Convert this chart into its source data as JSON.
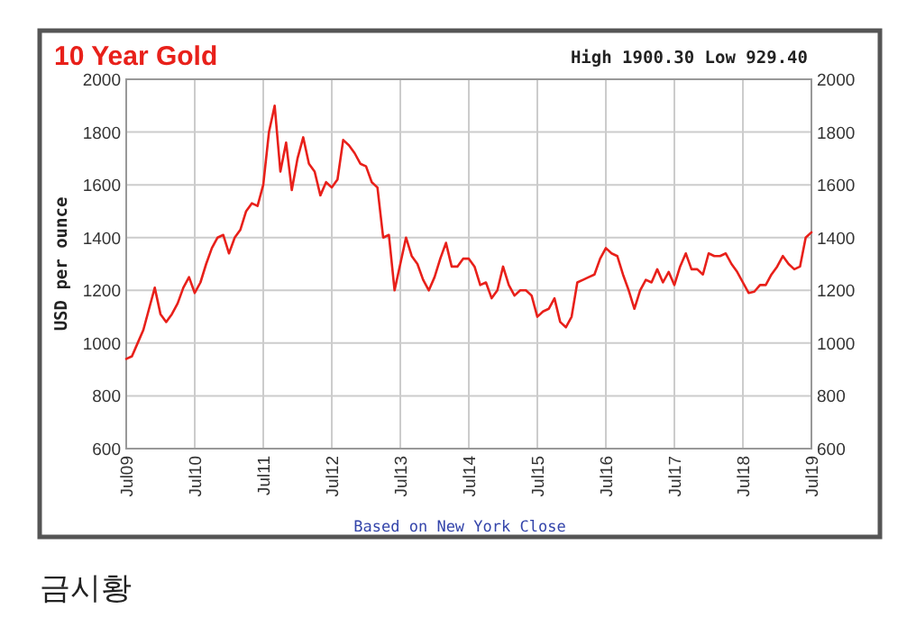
{
  "chart_data": {
    "type": "line",
    "title": "10 Year Gold",
    "subtitle": "High 1900.30 Low 929.40",
    "ylabel": "USD per ounce",
    "annotations": [
      "Based on New York Close",
      "금시황"
    ],
    "xlim": [
      "2009-07",
      "2019-07"
    ],
    "xticks": [
      {
        "value": "2009-07",
        "label": "Jul09"
      },
      {
        "value": "2010-07",
        "label": "Jul10"
      },
      {
        "value": "2011-07",
        "label": "Jul11"
      },
      {
        "value": "2012-07",
        "label": "Jul12"
      },
      {
        "value": "2013-07",
        "label": "Jul13"
      },
      {
        "value": "2014-07",
        "label": "Jul14"
      },
      {
        "value": "2015-07",
        "label": "Jul15"
      },
      {
        "value": "2016-07",
        "label": "Jul16"
      },
      {
        "value": "2017-07",
        "label": "Jul17"
      },
      {
        "value": "2018-07",
        "label": "Jul18"
      },
      {
        "value": "2019-07",
        "label": "Jul19"
      }
    ],
    "ylim": [
      600,
      2000
    ],
    "yticks": [
      600,
      800,
      1000,
      1200,
      1400,
      1600,
      1800,
      2000
    ],
    "y2lim": [
      600,
      2000
    ],
    "y2ticks": [
      600,
      800,
      1000,
      1200,
      1400,
      1600,
      1800,
      2000
    ],
    "grid": true,
    "marker": "none",
    "line_style": "solid",
    "x": [
      "2009-07",
      "2009-08",
      "2009-09",
      "2009-10",
      "2009-11",
      "2009-12",
      "2010-01",
      "2010-02",
      "2010-03",
      "2010-04",
      "2010-05",
      "2010-06",
      "2010-07",
      "2010-08",
      "2010-09",
      "2010-10",
      "2010-11",
      "2010-12",
      "2011-01",
      "2011-02",
      "2011-03",
      "2011-04",
      "2011-05",
      "2011-06",
      "2011-07",
      "2011-08",
      "2011-09",
      "2011-10",
      "2011-11",
      "2011-12",
      "2012-01",
      "2012-02",
      "2012-03",
      "2012-04",
      "2012-05",
      "2012-06",
      "2012-07",
      "2012-08",
      "2012-09",
      "2012-10",
      "2012-11",
      "2012-12",
      "2013-01",
      "2013-02",
      "2013-03",
      "2013-04",
      "2013-05",
      "2013-06",
      "2013-07",
      "2013-08",
      "2013-09",
      "2013-10",
      "2013-11",
      "2013-12",
      "2014-01",
      "2014-02",
      "2014-03",
      "2014-04",
      "2014-05",
      "2014-06",
      "2014-07",
      "2014-08",
      "2014-09",
      "2014-10",
      "2014-11",
      "2014-12",
      "2015-01",
      "2015-02",
      "2015-03",
      "2015-04",
      "2015-05",
      "2015-06",
      "2015-07",
      "2015-08",
      "2015-09",
      "2015-10",
      "2015-11",
      "2015-12",
      "2016-01",
      "2016-02",
      "2016-03",
      "2016-04",
      "2016-05",
      "2016-06",
      "2016-07",
      "2016-08",
      "2016-09",
      "2016-10",
      "2016-11",
      "2016-12",
      "2017-01",
      "2017-02",
      "2017-03",
      "2017-04",
      "2017-05",
      "2017-06",
      "2017-07",
      "2017-08",
      "2017-09",
      "2017-10",
      "2017-11",
      "2017-12",
      "2018-01",
      "2018-02",
      "2018-03",
      "2018-04",
      "2018-05",
      "2018-06",
      "2018-07",
      "2018-08",
      "2018-09",
      "2018-10",
      "2018-11",
      "2018-12",
      "2019-01",
      "2019-02",
      "2019-03",
      "2019-04",
      "2019-05",
      "2019-06",
      "2019-07"
    ],
    "series": [
      {
        "color": "#e8201a",
        "values": [
          940,
          950,
          1000,
          1050,
          1130,
          1210,
          1110,
          1080,
          1110,
          1150,
          1210,
          1250,
          1190,
          1230,
          1300,
          1360,
          1400,
          1410,
          1340,
          1400,
          1430,
          1500,
          1530,
          1520,
          1600,
          1800,
          1900,
          1650,
          1760,
          1580,
          1700,
          1780,
          1680,
          1650,
          1560,
          1610,
          1590,
          1620,
          1770,
          1750,
          1720,
          1680,
          1670,
          1610,
          1590,
          1400,
          1410,
          1200,
          1300,
          1400,
          1330,
          1300,
          1240,
          1200,
          1250,
          1320,
          1380,
          1290,
          1290,
          1320,
          1320,
          1290,
          1220,
          1230,
          1170,
          1200,
          1290,
          1220,
          1180,
          1200,
          1200,
          1180,
          1100,
          1120,
          1130,
          1170,
          1080,
          1060,
          1100,
          1230,
          1240,
          1250,
          1260,
          1320,
          1360,
          1340,
          1330,
          1260,
          1200,
          1130,
          1200,
          1240,
          1230,
          1280,
          1230,
          1270,
          1220,
          1290,
          1340,
          1280,
          1280,
          1260,
          1340,
          1330,
          1330,
          1340,
          1300,
          1270,
          1230,
          1190,
          1195,
          1220,
          1220,
          1260,
          1290,
          1330,
          1300,
          1280,
          1290,
          1400,
          1420
        ]
      }
    ]
  }
}
